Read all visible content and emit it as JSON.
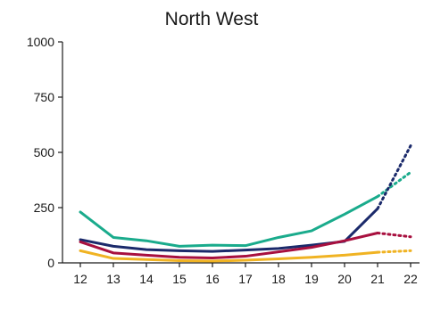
{
  "chart_data": {
    "type": "line",
    "title": "North West",
    "xlabel": "",
    "ylabel": "",
    "x": [
      "12",
      "13",
      "14",
      "15",
      "16",
      "17",
      "18",
      "19",
      "20",
      "21",
      "22"
    ],
    "ylim": [
      0,
      1000
    ],
    "yticks": [
      0,
      250,
      500,
      750,
      1000
    ],
    "grid": false,
    "legend": "none",
    "series": [
      {
        "color": "#1aab8c",
        "values": [
          230,
          115,
          100,
          75,
          80,
          78,
          115,
          145,
          220,
          300,
          null
        ],
        "projection": [
          300,
          410
        ]
      },
      {
        "color": "#1b2a6b",
        "values": [
          105,
          75,
          60,
          55,
          52,
          58,
          65,
          80,
          97,
          245,
          null
        ],
        "projection": [
          245,
          530
        ]
      },
      {
        "color": "#a8103f",
        "values": [
          95,
          45,
          35,
          25,
          22,
          30,
          50,
          70,
          100,
          135,
          null
        ],
        "projection": [
          135,
          118
        ]
      },
      {
        "color": "#f0b323",
        "values": [
          55,
          20,
          15,
          10,
          8,
          12,
          18,
          25,
          35,
          48,
          null
        ],
        "projection": [
          48,
          55
        ]
      }
    ]
  }
}
